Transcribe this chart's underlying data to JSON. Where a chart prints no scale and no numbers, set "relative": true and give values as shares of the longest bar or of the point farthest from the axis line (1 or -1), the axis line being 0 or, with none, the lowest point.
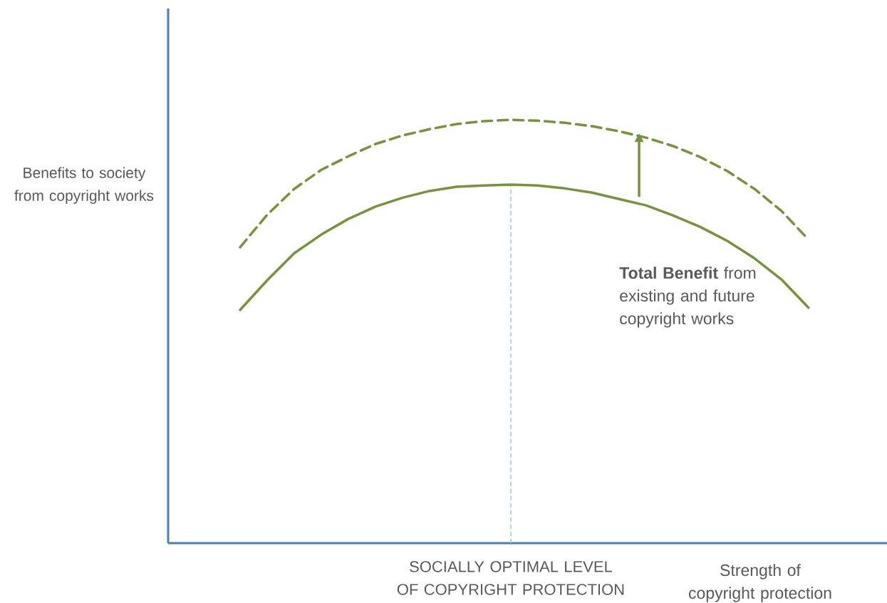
{
  "chart_data": {
    "type": "line",
    "relative": true,
    "xlabel": "Strength of copyright protection",
    "ylabel": "Benefits to society from copyright works",
    "categories": [
      null,
      null,
      null,
      null,
      null,
      null,
      null,
      null,
      null,
      null,
      null,
      null,
      null,
      null,
      null,
      null,
      null,
      null,
      null,
      null,
      null,
      null
    ],
    "series": [
      {
        "color": "#77933c",
        "line_style": "dashed",
        "values": [
          0.699,
          0.776,
          0.837,
          0.882,
          0.914,
          0.943,
          0.963,
          0.978,
          0.99,
          0.997,
          1,
          0.998,
          0.993,
          0.985,
          0.973,
          0.958,
          0.938,
          0.912,
          0.879,
          0.837,
          0.785,
          0.717
        ]
      },
      {
        "color": "#77933c",
        "line_style": "solid",
        "values": [
          0.551,
          0.621,
          0.685,
          0.729,
          0.766,
          0.795,
          0.816,
          0.832,
          0.842,
          0.845,
          0.847,
          0.845,
          0.838,
          0.828,
          0.813,
          0.798,
          0.774,
          0.747,
          0.714,
          0.673,
          0.623,
          0.556
        ]
      }
    ],
    "annotations": [
      "**Total Benefit** from existing and future copyright works",
      "SOCIALLY OPTIMAL LEVEL OF COPYRIGHT PROTECTION"
    ],
    "grid": false,
    "marker": "none"
  }
}
